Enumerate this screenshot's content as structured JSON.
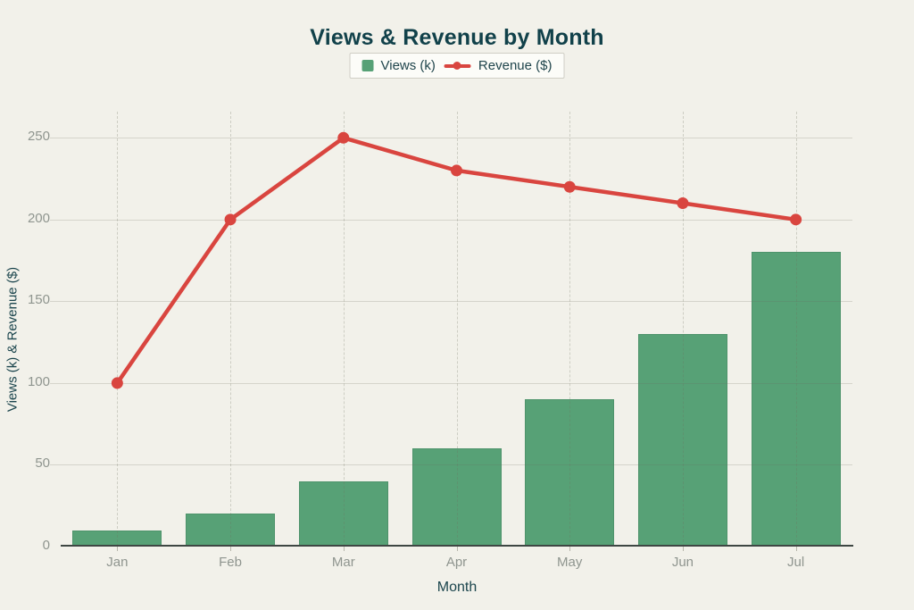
{
  "chart_data": {
    "type": "bar+line",
    "title": "Views & Revenue by Month",
    "xlabel": "Month",
    "ylabel": "Views (k) & Revenue ($)",
    "categories": [
      "Jan",
      "Feb",
      "Mar",
      "Apr",
      "May",
      "Jun",
      "Jul"
    ],
    "series": [
      {
        "name": "Views (k)",
        "type": "bar",
        "color": "#57a176",
        "values": [
          10,
          20,
          40,
          60,
          90,
          130,
          180
        ]
      },
      {
        "name": "Revenue ($)",
        "type": "line",
        "color": "#d9453f",
        "values": [
          100,
          200,
          250,
          230,
          220,
          210,
          200
        ]
      }
    ],
    "yticks": [
      0,
      50,
      100,
      150,
      200,
      250
    ],
    "ylim": [
      0,
      250
    ],
    "y_plot_max": 266,
    "grid": true,
    "legend_position": "top-center",
    "background": "#f2f1ea",
    "text_color": "#11414a",
    "tick_color": "#8f958f"
  }
}
